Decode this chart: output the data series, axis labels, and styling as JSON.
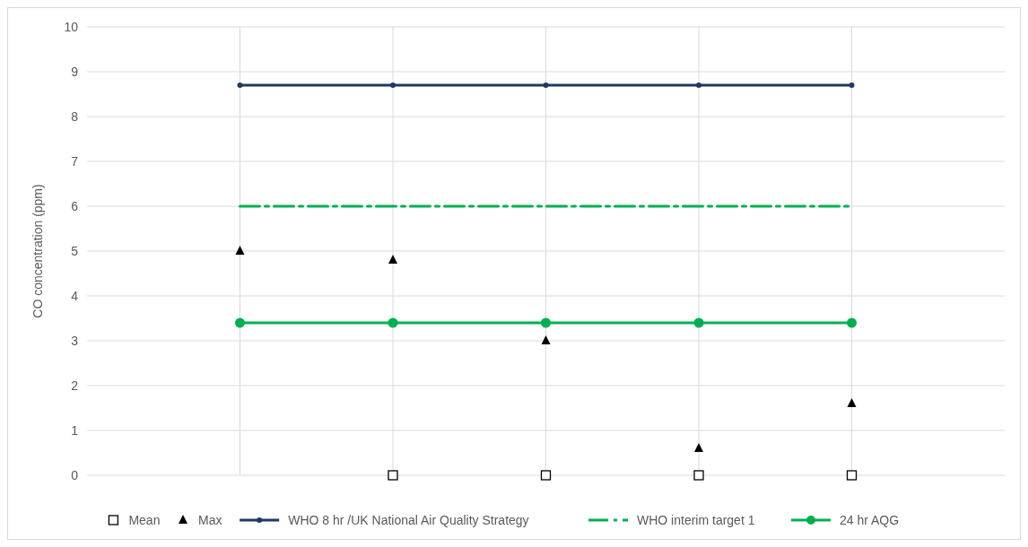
{
  "chart_data": {
    "type": "line",
    "ylabel": "CO concentration (ppm)",
    "categories": [
      null,
      null,
      null,
      null,
      null
    ],
    "ylim": [
      0,
      10
    ],
    "yticks": [
      0,
      1,
      2,
      3,
      4,
      5,
      6,
      7,
      8,
      9,
      10
    ],
    "grid": true,
    "tick_labels": "y",
    "legend": "bottom",
    "series": [
      {
        "name": "Mean",
        "type": "scatter",
        "marker": "square",
        "color": "#000000",
        "values": [
          null,
          0,
          0,
          0,
          0
        ]
      },
      {
        "name": "Max",
        "type": "scatter",
        "marker": "triangle",
        "color": "#000000",
        "values": [
          5,
          4.8,
          3,
          0.6,
          1.6
        ]
      },
      {
        "name": "WHO 8 hr /UK National Air Quality Strategy",
        "marker": "circle",
        "color": "#1f3864",
        "values": [
          8.7,
          8.7,
          8.7,
          8.7,
          8.7
        ]
      },
      {
        "name": "WHO interim target 1",
        "marker": "none",
        "line_style": "dashed",
        "color": "#00b050",
        "values": [
          6,
          6,
          6,
          6,
          6
        ]
      },
      {
        "name": "24 hr AQG",
        "marker": "circle",
        "color": "#00b050",
        "values": [
          3.4,
          3.4,
          3.4,
          3.4,
          3.4
        ]
      }
    ]
  }
}
